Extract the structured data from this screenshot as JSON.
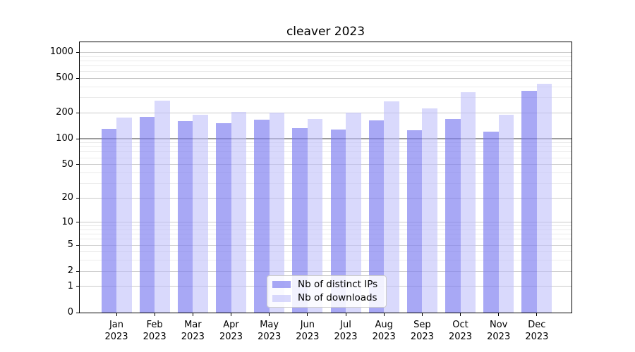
{
  "chart_data": {
    "type": "bar",
    "title": "cleaver 2023",
    "year": "2023",
    "months": [
      "Jan",
      "Feb",
      "Mar",
      "Apr",
      "May",
      "Jun",
      "Jul",
      "Aug",
      "Sep",
      "Oct",
      "Nov",
      "Dec"
    ],
    "categories": [
      "Jan 2023",
      "Feb 2023",
      "Mar 2023",
      "Apr 2023",
      "May 2023",
      "Jun 2023",
      "Jul 2023",
      "Aug 2023",
      "Sep 2023",
      "Oct 2023",
      "Nov 2023",
      "Dec 2023"
    ],
    "series": [
      {
        "name": "Nb of distinct IPs",
        "key": "distinct-ips",
        "values": [
          130,
          180,
          160,
          153,
          168,
          133,
          129,
          165,
          126,
          170,
          121,
          363
        ]
      },
      {
        "name": "Nb of downloads",
        "key": "downloads",
        "values": [
          175,
          278,
          190,
          205,
          203,
          171,
          203,
          270,
          227,
          345,
          192,
          438
        ]
      }
    ],
    "scale": "log1p",
    "ylim": [
      0,
      1310
    ],
    "y_ticks": [
      0,
      1,
      2,
      5,
      10,
      20,
      50,
      100,
      200,
      500,
      1000
    ],
    "y_minor_ticks": [
      3,
      4,
      6,
      7,
      8,
      9,
      30,
      40,
      60,
      70,
      80,
      90,
      300,
      400,
      600,
      700,
      800,
      900
    ],
    "grid": true,
    "legend_position": "lower center",
    "colors": {
      "bar_distinct_ips": "rgba(123,123,240,0.66)",
      "bar_downloads": "rgba(190,190,250,0.58)",
      "grid_minor": "#ebebeb",
      "grid_major": "#c9c9c9",
      "grid_hundred": "#9c9c9c",
      "spine": "#000000",
      "background": "#ffffff"
    }
  }
}
